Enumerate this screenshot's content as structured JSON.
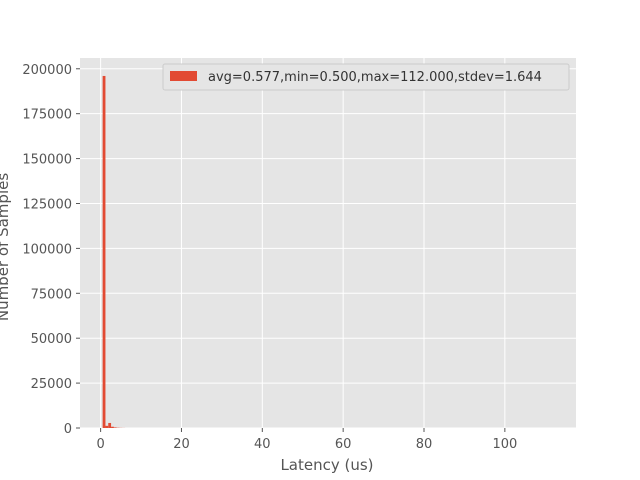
{
  "chart_data": {
    "type": "bar",
    "title": "",
    "xlabel": "Latency (us)",
    "ylabel": "Number of Samples",
    "xlim": [
      -5.1,
      117.6
    ],
    "ylim": [
      0,
      206000
    ],
    "x_ticks": [
      0,
      20,
      40,
      60,
      80,
      100
    ],
    "y_ticks": [
      0,
      25000,
      50000,
      75000,
      100000,
      125000,
      150000,
      175000,
      200000
    ],
    "grid": true,
    "legend_position": "top-right",
    "series": [
      {
        "name": "avg=0.577,min=0.500,max=112.000,stdev=1.644",
        "color": "#e24a33",
        "bin_width": 0.695,
        "bins": [
          {
            "x": 0.5,
            "count": 196000
          },
          {
            "x": 1.195,
            "count": 1200
          },
          {
            "x": 1.89,
            "count": 2800
          },
          {
            "x": 2.585,
            "count": 700
          },
          {
            "x": 3.28,
            "count": 300
          },
          {
            "x": 3.975,
            "count": 150
          },
          {
            "x": 4.67,
            "count": 80
          },
          {
            "x": 5.365,
            "count": 40
          }
        ]
      }
    ]
  },
  "colors": {
    "plot_background": "#e5e5e5",
    "grid": "#ffffff",
    "axis_text": "#555555",
    "bar": "#e24a33"
  }
}
